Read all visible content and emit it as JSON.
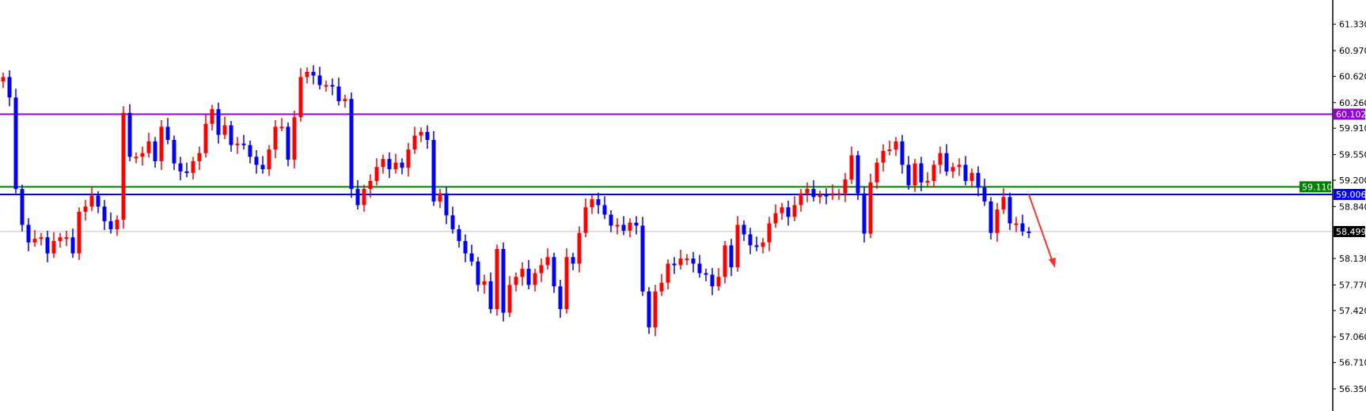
{
  "chart_data": {
    "type": "candlestick",
    "title": "",
    "xlabel": "",
    "ylabel": "",
    "ylim": [
      56.1,
      61.7
    ],
    "grid": false,
    "colors": {
      "bullish": "#ff0000",
      "bearish": "#0000ff",
      "axis": "#000000",
      "background": "#ffffff"
    },
    "y_ticks": [
      "61.330",
      "60.970",
      "60.620",
      "60.260",
      "59.910",
      "59.550",
      "59.200",
      "58.840",
      "58.130",
      "57.770",
      "57.420",
      "57.060",
      "56.710",
      "56.350"
    ],
    "first_open": 60.55,
    "closes": [
      60.61,
      60.33,
      59.08,
      58.59,
      58.35,
      58.4,
      58.42,
      58.2,
      58.37,
      58.42,
      58.42,
      58.2,
      58.77,
      58.84,
      58.99,
      58.84,
      58.64,
      58.53,
      58.66,
      60.12,
      59.52,
      59.52,
      59.57,
      59.73,
      59.46,
      59.93,
      59.75,
      59.43,
      59.32,
      59.3,
      59.46,
      59.57,
      59.97,
      60.17,
      59.82,
      59.95,
      59.68,
      59.7,
      59.68,
      59.52,
      59.41,
      59.35,
      59.62,
      59.93,
      59.93,
      59.48,
      60.06,
      60.61,
      60.68,
      60.63,
      60.5,
      60.5,
      60.48,
      60.28,
      60.31,
      59.08,
      58.86,
      59.08,
      59.19,
      59.38,
      59.49,
      59.35,
      59.44,
      59.37,
      59.62,
      59.81,
      59.86,
      59.75,
      58.91,
      59.02,
      58.72,
      58.53,
      58.37,
      58.2,
      58.09,
      57.77,
      57.82,
      57.44,
      58.26,
      57.39,
      57.77,
      57.88,
      57.99,
      57.77,
      57.93,
      58.04,
      58.15,
      57.75,
      57.44,
      58.15,
      58.06,
      58.48,
      58.83,
      58.94,
      58.86,
      58.73,
      58.58,
      58.59,
      58.51,
      58.62,
      58.58,
      57.68,
      57.19,
      57.68,
      57.8,
      58.06,
      58.04,
      58.13,
      58.13,
      58.06,
      57.93,
      57.91,
      57.75,
      57.88,
      58.31,
      58.01,
      58.59,
      58.46,
      58.31,
      58.29,
      58.35,
      58.61,
      58.75,
      58.83,
      58.7,
      58.86,
      59.02,
      59.08,
      58.97,
      59.0,
      58.99,
      59.02,
      59.02,
      59.21,
      59.54,
      59.02,
      58.47,
      59.17,
      59.44,
      59.6,
      59.62,
      59.73,
      59.41,
      59.13,
      59.43,
      59.17,
      59.19,
      59.41,
      59.57,
      59.32,
      59.38,
      59.41,
      59.19,
      59.3,
      59.1,
      58.91,
      58.48,
      58.8,
      58.97,
      58.61,
      58.61,
      58.5,
      58.499
    ],
    "horizontal_lines": [
      {
        "price": 60.102,
        "label": "60.102",
        "color": "#9400d3"
      },
      {
        "price": 59.11,
        "label": "59.110",
        "color": "#008000"
      },
      {
        "price": 59.006,
        "label": "59.006",
        "color": "#0000ff"
      }
    ],
    "current_price": {
      "price": 58.499,
      "label": "58.499",
      "line_color": "#c0c0c0",
      "label_bg": "#000000"
    },
    "annotation": {
      "type": "arrow",
      "direction": "down",
      "color": "#ff3030"
    }
  }
}
